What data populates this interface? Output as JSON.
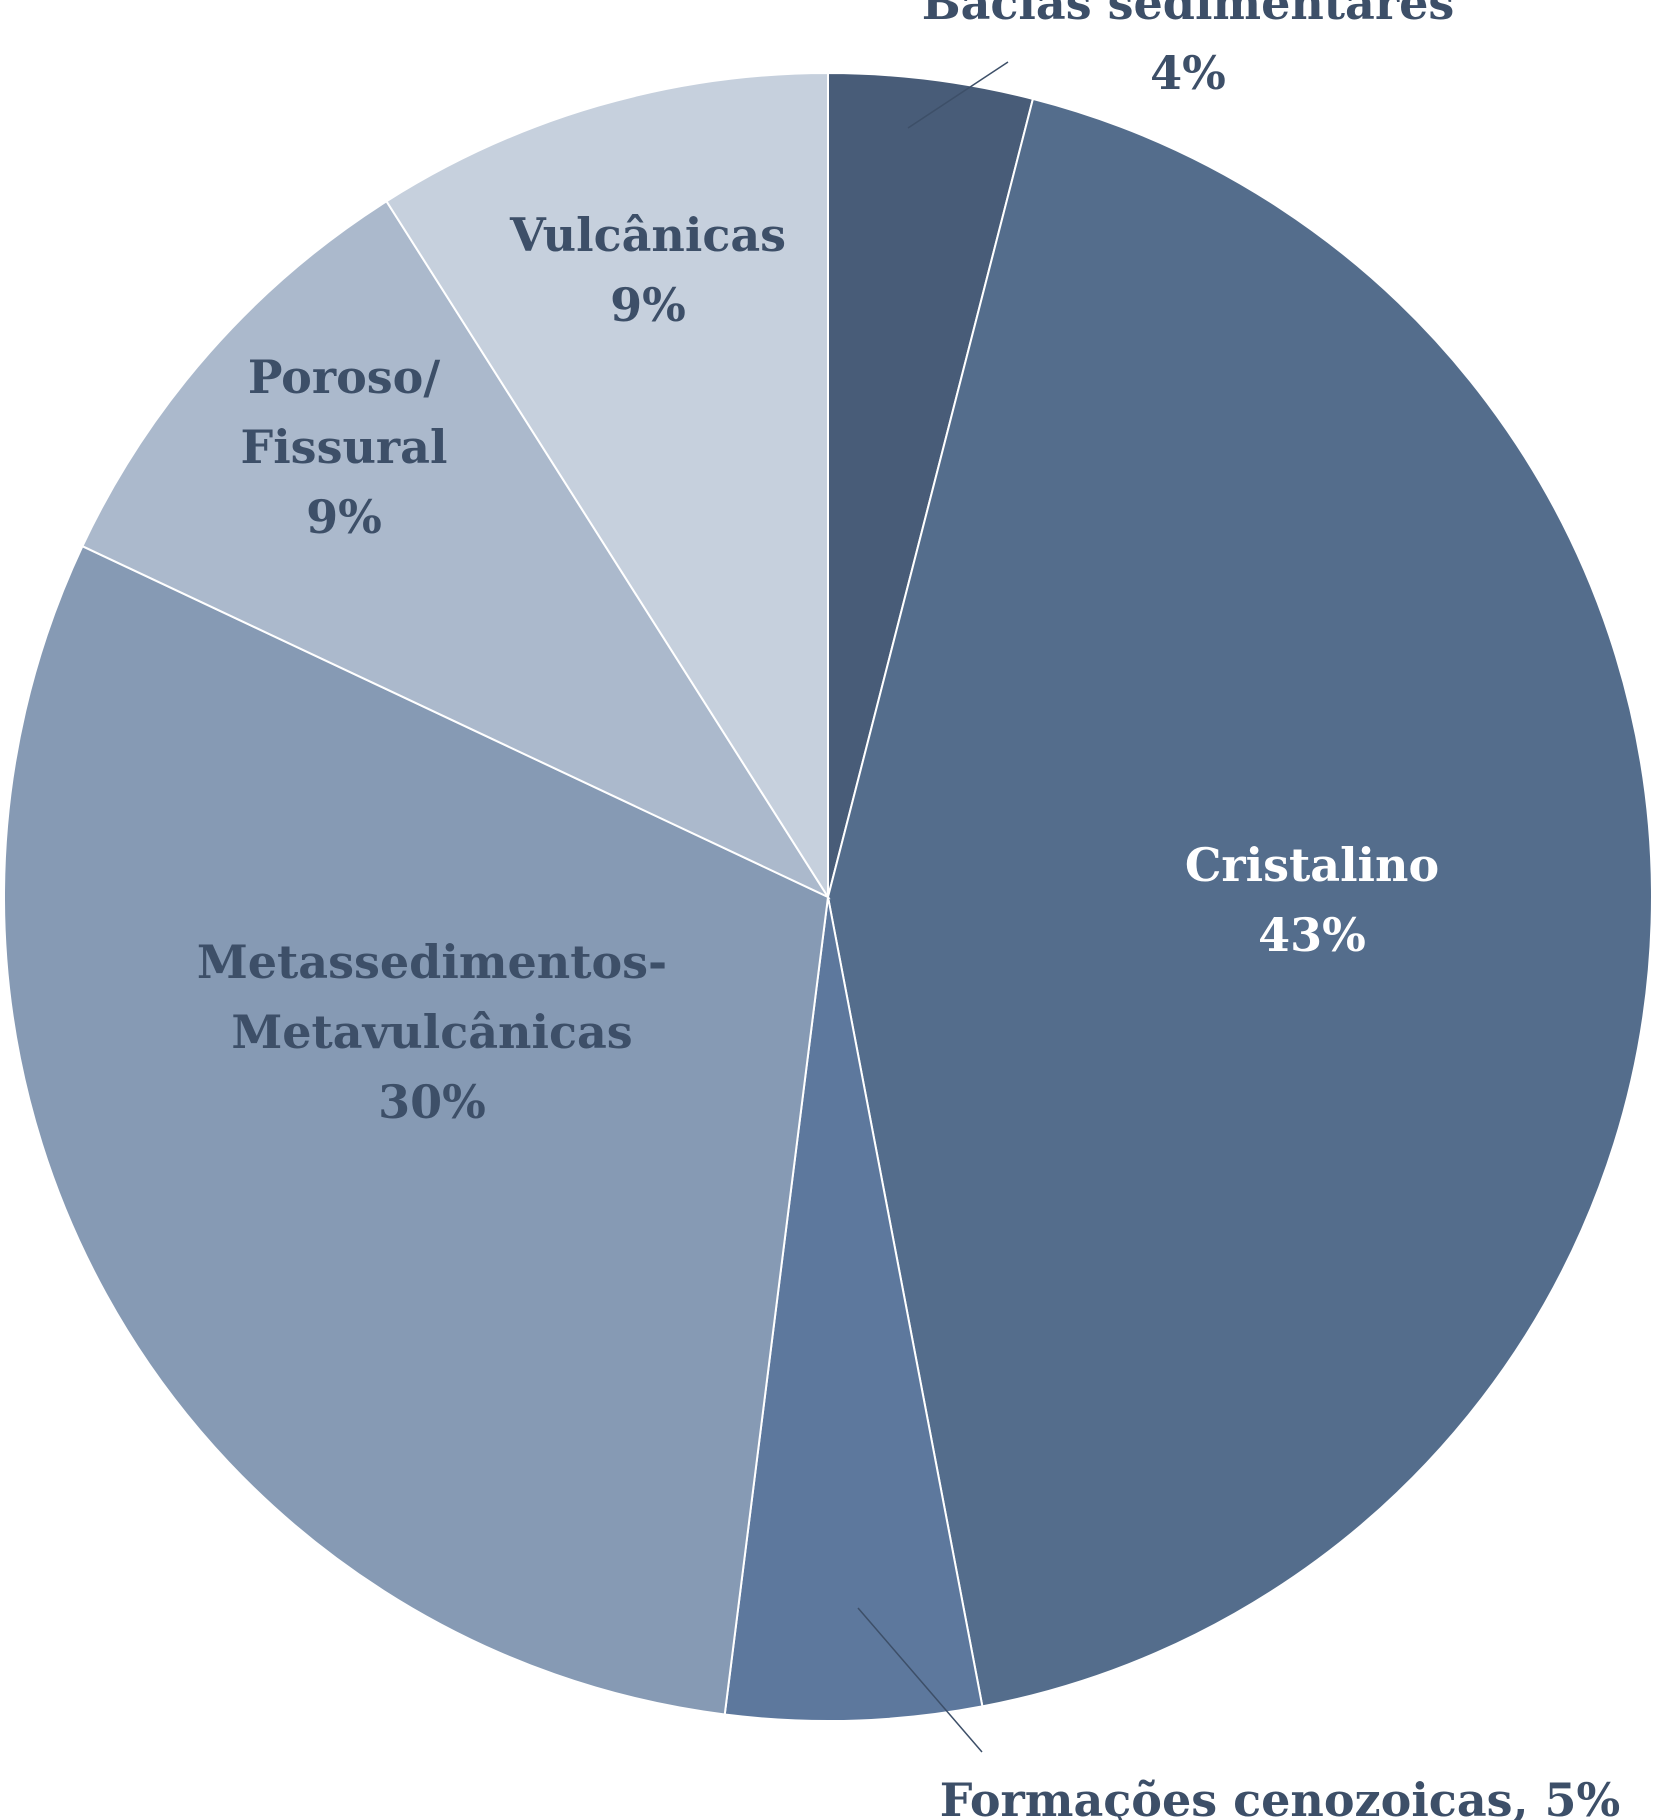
{
  "chart_data": {
    "type": "pie",
    "slices": [
      {
        "label_lines": [
          "Bacias sedimentares",
          "4%"
        ],
        "value": 4,
        "color": "#485c78",
        "text_color": "#3d4f68"
      },
      {
        "label_lines": [
          "Cristalino",
          "43%"
        ],
        "value": 43,
        "color": "#546d8c",
        "text_color": "#ffffff"
      },
      {
        "label_lines": [
          "Formações cenozoicas, 5%"
        ],
        "value": 5,
        "color": "#5d789d",
        "text_color": "#3d4f68"
      },
      {
        "label_lines": [
          "Metassedimentos-",
          "Metavulcânicas",
          "30%"
        ],
        "value": 30,
        "color": "#869ab4",
        "text_color": "#3d4f68"
      },
      {
        "label_lines": [
          "Poroso/",
          "Fissural",
          "9%"
        ],
        "value": 9,
        "color": "#abb9cc",
        "text_color": "#3d4f68"
      },
      {
        "label_lines": [
          "Vulcânicas",
          "9%"
        ],
        "value": 9,
        "color": "#c6d0dd",
        "text_color": "#3d4f68"
      }
    ],
    "start": "top",
    "direction": "clockwise",
    "legend": "none"
  }
}
